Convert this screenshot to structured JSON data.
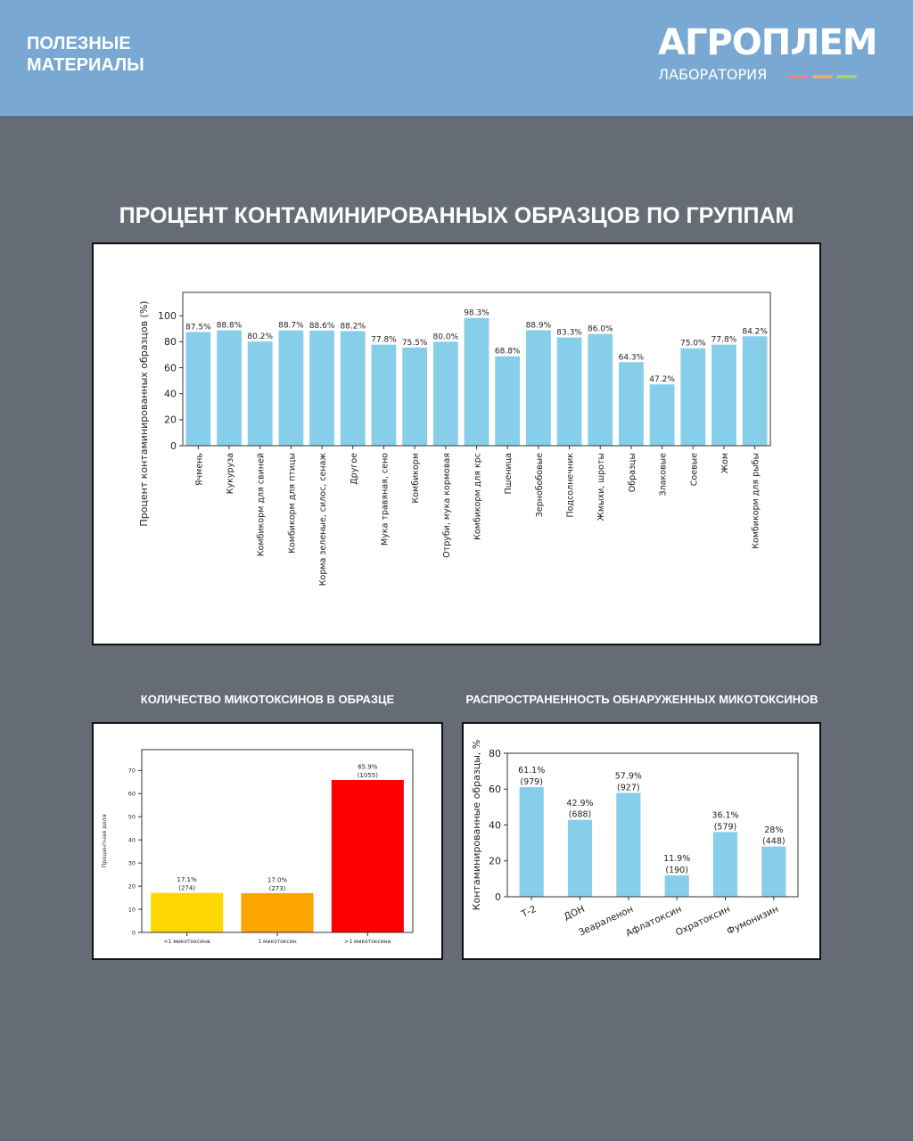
{
  "header": {
    "section_label": "ПОЛЕЗНЫЕ МАТЕРИАЛЫ",
    "logo_main": "АГРОПЛЕМ",
    "logo_sub": "ЛАБОРАТОРИЯ",
    "logo_dash_colors": [
      "#e8838f",
      "#f0a868",
      "#9fd36e"
    ]
  },
  "main_title": "ПРОЦЕНТ КОНТАМИНИРОВАННЫХ ОБРАЗЦОВ ПО ГРУППАМ",
  "subtitles": {
    "left": "КОЛИЧЕСТВО МИКОТОКСИНОВ В ОБРАЗЦЕ",
    "right": "РАСПРОСТРАНЕННОСТЬ ОБНАРУЖЕННЫХ МИКОТОКСИНОВ"
  },
  "chart_data": [
    {
      "type": "bar",
      "title": "",
      "xlabel": "",
      "ylabel": "Процент контаминированных образцов (%)",
      "ylim": [
        0,
        118
      ],
      "yticks": [
        0,
        20,
        40,
        60,
        80,
        100
      ],
      "grid": false,
      "color": "#87ceeb",
      "categories": [
        "Ячмень",
        "Кукуруза",
        "Комбикорм для свиней",
        "Комбикорм для птицы",
        "Корма зеленые, силос, сенаж",
        "Другое",
        "Мука травяная, сено",
        "Комбикорм",
        "Отруби, мука кормовая",
        "Комбикорм для крс",
        "Пшеница",
        "Зернобобовые",
        "Подсолнечник",
        "Жмыхи, шроты",
        "Образцы",
        "Злаковые",
        "Соевые",
        "Жом",
        "Комбикорм для рыбы"
      ],
      "values": [
        87.5,
        88.8,
        80.2,
        88.7,
        88.6,
        88.2,
        77.8,
        75.5,
        80.0,
        98.3,
        68.8,
        88.9,
        83.3,
        86.0,
        64.3,
        47.2,
        75.0,
        77.8,
        84.2
      ],
      "labels": [
        "87.5%",
        "88.8%",
        "80.2%",
        "88.7%",
        "88.6%",
        "88.2%",
        "77.8%",
        "75.5%",
        "80.0%",
        "98.3%",
        "68.8%",
        "88.9%",
        "83.3%",
        "86.0%",
        "64.3%",
        "47.2%",
        "75.0%",
        "77.8%",
        "84.2%"
      ]
    },
    {
      "type": "bar",
      "title": "",
      "xlabel": "",
      "ylabel": "Процентная доля",
      "ylim": [
        0,
        79
      ],
      "yticks": [
        0,
        10,
        20,
        30,
        40,
        50,
        60,
        70
      ],
      "grid": false,
      "categories": [
        "<1 микотоксина",
        "1 микотоксин",
        ">1 микотоксина"
      ],
      "values": [
        17.1,
        17.0,
        65.9
      ],
      "counts": [
        274,
        273,
        1055
      ],
      "labels": [
        "17.1%",
        "17.0%",
        "65.9%"
      ],
      "count_labels": [
        "(274)",
        "(273)",
        "(1055)"
      ],
      "colors": [
        "#ffd700",
        "#ffa500",
        "#ff0000"
      ]
    },
    {
      "type": "bar",
      "title": "",
      "xlabel": "",
      "ylabel": "Контаминированные образцы, %",
      "ylim": [
        0,
        80
      ],
      "yticks": [
        0,
        20,
        40,
        60,
        80
      ],
      "grid": false,
      "color": "#87ceeb",
      "categories": [
        "Т-2",
        "ДОН",
        "Зеараленон",
        "Афлатоксин",
        "Охратоксин",
        "Фумонизин"
      ],
      "values": [
        61.1,
        42.9,
        57.9,
        11.9,
        36.1,
        28
      ],
      "counts": [
        979,
        688,
        927,
        190,
        579,
        448
      ],
      "labels": [
        "61.1%",
        "42.9%",
        "57.9%",
        "11.9%",
        "36.1%",
        "28%"
      ],
      "count_labels": [
        "(979)",
        "(688)",
        "(927)",
        "(190)",
        "(579)",
        "(448)"
      ]
    }
  ]
}
